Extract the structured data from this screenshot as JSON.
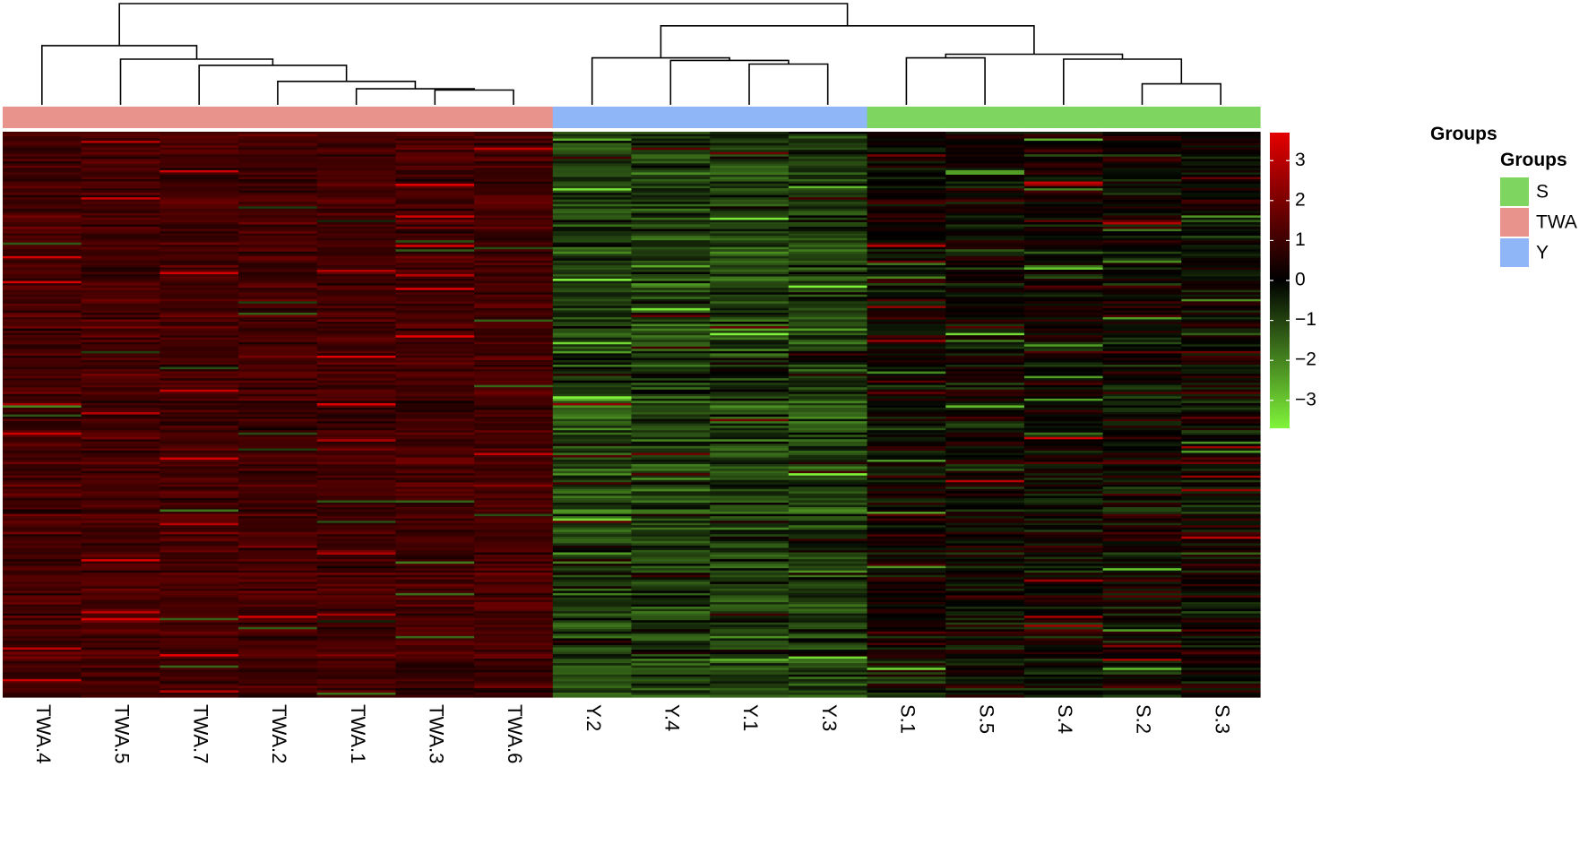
{
  "chart_data": {
    "type": "heatmap",
    "columns": [
      "TWA.4",
      "TWA.5",
      "TWA.7",
      "TWA.2",
      "TWA.1",
      "TWA.3",
      "TWA.6",
      "Y.2",
      "Y.4",
      "Y.1",
      "Y.3",
      "S.1",
      "S.5",
      "S.4",
      "S.2",
      "S.3"
    ],
    "column_groups": [
      "TWA",
      "TWA",
      "TWA",
      "TWA",
      "TWA",
      "TWA",
      "TWA",
      "Y",
      "Y",
      "Y",
      "Y",
      "S",
      "S",
      "S",
      "S",
      "S"
    ],
    "group_track_label": "Groups",
    "legend": {
      "title": "Groups",
      "items": [
        {
          "label": "S",
          "color": "#7ED55F"
        },
        {
          "label": "TWA",
          "color": "#E8938B"
        },
        {
          "label": "Y",
          "color": "#8FB6F7"
        }
      ]
    },
    "colorbar": {
      "range": [
        -3.7,
        3.7
      ],
      "ticks": [
        "3",
        "2",
        "1",
        "0",
        "−1",
        "−2",
        "−3"
      ],
      "tick_values": [
        3,
        2,
        1,
        0,
        -1,
        -2,
        -3
      ],
      "low_color": "#80F43A",
      "mid_color": "#000000",
      "high_color": "#E40000"
    },
    "row_count": 250,
    "group_mean_values": {
      "TWA": 1.1,
      "Y": -0.9,
      "S": 0.05
    },
    "dendrogram_merges": [
      {
        "left": 5,
        "right": 6,
        "height": 0.6
      },
      {
        "left": 4,
        "right": 16,
        "height": 0.65
      },
      {
        "left": 3,
        "right": 17,
        "height": 0.95
      },
      {
        "left": 2,
        "right": 18,
        "height": 1.6
      },
      {
        "left": 1,
        "right": 19,
        "height": 1.85
      },
      {
        "left": 0,
        "right": 20,
        "height": 2.4
      },
      {
        "left": 14,
        "right": 15,
        "height": 0.85
      },
      {
        "left": 13,
        "right": 22,
        "height": 1.85
      },
      {
        "left": 11,
        "right": 12,
        "height": 1.9
      },
      {
        "left": 24,
        "right": 23,
        "height": 2.05
      },
      {
        "left": 9,
        "right": 10,
        "height": 1.65
      },
      {
        "left": 8,
        "right": 26,
        "height": 1.8
      },
      {
        "left": 7,
        "right": 27,
        "height": 1.9
      },
      {
        "left": 28,
        "right": 25,
        "height": 3.2
      },
      {
        "left": 21,
        "right": 29,
        "height": 4.1
      }
    ]
  }
}
